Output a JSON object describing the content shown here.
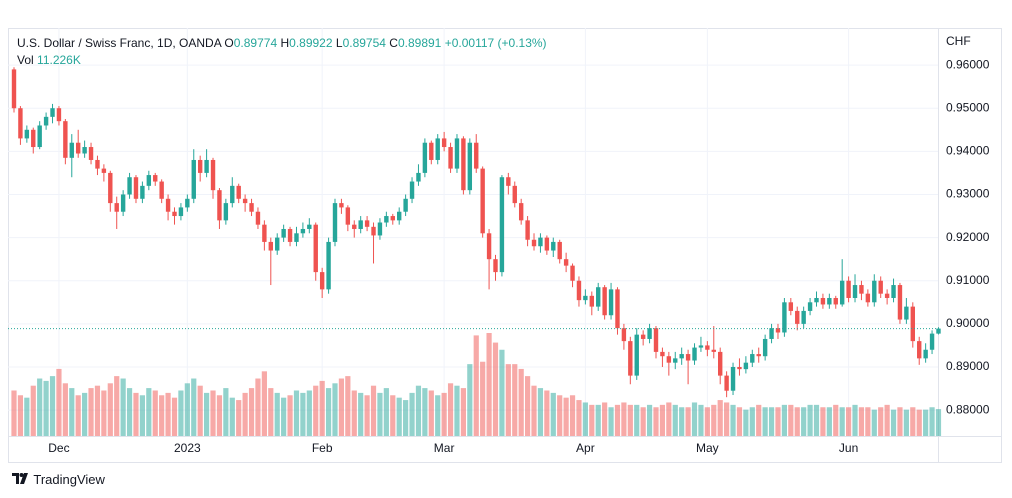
{
  "chart_data": {
    "type": "candlestick",
    "title": "U.S. Dollar / Swiss Franc, 1D, OANDA",
    "ohlc_labels": [
      "O",
      "H",
      "L",
      "C"
    ],
    "change_label": "+0.00117 (+0.13%)",
    "volume_label": "Vol",
    "volume_value_label": "11.226K",
    "y_axis_label": "CHF",
    "up_color": "#26a69a",
    "down_color": "#ef5350",
    "grid": true,
    "ylim": [
      0.874,
      0.9686
    ],
    "yticks": [
      {
        "value": 0.88,
        "label": "0.88000"
      },
      {
        "value": 0.89,
        "label": "0.89000"
      },
      {
        "value": 0.9,
        "label": "0.90000"
      },
      {
        "value": 0.91,
        "label": "0.91000"
      },
      {
        "value": 0.92,
        "label": "0.92000"
      },
      {
        "value": 0.93,
        "label": "0.93000"
      },
      {
        "value": 0.94,
        "label": "0.94000"
      },
      {
        "value": 0.95,
        "label": "0.95000"
      },
      {
        "value": 0.96,
        "label": "0.96000"
      }
    ],
    "categories": [
      null,
      null,
      null,
      null,
      null,
      null,
      null,
      "Dec",
      null,
      null,
      null,
      null,
      null,
      null,
      null,
      null,
      null,
      null,
      null,
      null,
      null,
      null,
      null,
      null,
      null,
      null,
      null,
      "2023",
      null,
      null,
      null,
      null,
      null,
      null,
      null,
      null,
      null,
      null,
      null,
      null,
      null,
      null,
      null,
      null,
      null,
      null,
      null,
      null,
      "Feb",
      null,
      null,
      null,
      null,
      null,
      null,
      null,
      null,
      null,
      null,
      null,
      null,
      null,
      null,
      null,
      null,
      null,
      null,
      "Mar",
      null,
      null,
      null,
      null,
      null,
      null,
      null,
      null,
      null,
      null,
      null,
      null,
      null,
      null,
      null,
      null,
      null,
      null,
      null,
      null,
      null,
      "Apr",
      null,
      null,
      null,
      null,
      null,
      null,
      null,
      null,
      null,
      null,
      null,
      null,
      null,
      null,
      null,
      null,
      null,
      null,
      "May",
      null,
      null,
      null,
      null,
      null,
      null,
      null,
      null,
      null,
      null,
      null,
      null,
      null,
      null,
      null,
      null,
      null,
      null,
      null,
      null,
      null,
      "Jun",
      null,
      null,
      null,
      null,
      null,
      null,
      null,
      null,
      null,
      null,
      null,
      null,
      null,
      null
    ],
    "open": [
      0.959,
      0.95,
      0.943,
      0.945,
      0.941,
      0.946,
      0.948,
      0.95,
      0.947,
      0.9385,
      0.942,
      0.9395,
      0.941,
      0.938,
      0.936,
      0.935,
      0.928,
      0.926,
      0.93,
      0.934,
      0.929,
      0.932,
      0.9345,
      0.933,
      0.929,
      0.926,
      0.925,
      0.927,
      0.929,
      0.938,
      0.935,
      0.938,
      0.931,
      0.924,
      0.928,
      0.932,
      0.929,
      0.928,
      0.926,
      0.923,
      0.919,
      0.917,
      0.92,
      0.922,
      0.919,
      0.921,
      0.922,
      0.923,
      0.912,
      0.908,
      0.919,
      0.928,
      0.927,
      0.923,
      0.922,
      0.924,
      0.9225,
      0.9205,
      0.9235,
      0.925,
      0.924,
      0.926,
      0.929,
      0.933,
      0.935,
      0.942,
      0.938,
      0.943,
      0.941,
      0.936,
      0.943,
      0.931,
      0.942,
      0.936,
      0.921,
      0.915,
      0.912,
      0.934,
      0.932,
      0.928,
      0.924,
      0.9195,
      0.918,
      0.92,
      0.917,
      0.919,
      0.915,
      0.9135,
      0.91,
      0.9055,
      0.9065,
      0.904,
      0.9085,
      0.902,
      0.908,
      0.899,
      0.896,
      0.888,
      0.8975,
      0.8965,
      0.899,
      0.8935,
      0.8925,
      0.891,
      0.892,
      0.893,
      0.8915,
      0.8945,
      0.895,
      0.894,
      0.8935,
      0.888,
      0.8845,
      0.89,
      0.8895,
      0.891,
      0.893,
      0.8925,
      0.8965,
      0.899,
      0.898,
      0.905,
      0.903,
      0.9,
      0.903,
      0.905,
      0.906,
      0.9045,
      0.906,
      0.9045,
      0.91,
      0.906,
      0.909,
      0.907,
      0.905,
      0.91,
      0.907,
      0.906,
      0.909,
      0.901,
      0.904,
      0.896,
      0.892,
      0.894,
      0.89774
    ],
    "high": [
      0.9595,
      0.9505,
      0.946,
      0.9455,
      0.947,
      0.949,
      0.951,
      0.9505,
      0.9475,
      0.944,
      0.945,
      0.9425,
      0.942,
      0.939,
      0.937,
      0.9355,
      0.9295,
      0.931,
      0.935,
      0.9345,
      0.933,
      0.9355,
      0.935,
      0.9335,
      0.93,
      0.927,
      0.928,
      0.93,
      0.9405,
      0.939,
      0.9405,
      0.9385,
      0.9315,
      0.929,
      0.934,
      0.9325,
      0.93,
      0.929,
      0.927,
      0.924,
      0.92,
      0.921,
      0.923,
      0.9225,
      0.9225,
      0.9235,
      0.9245,
      0.9235,
      0.913,
      0.92,
      0.929,
      0.929,
      0.9275,
      0.924,
      0.925,
      0.925,
      0.9235,
      0.9245,
      0.926,
      0.9255,
      0.927,
      0.93,
      0.934,
      0.937,
      0.943,
      0.9425,
      0.944,
      0.9445,
      0.942,
      0.944,
      0.9435,
      0.943,
      0.944,
      0.9365,
      0.922,
      0.916,
      0.9345,
      0.935,
      0.933,
      0.929,
      0.925,
      0.921,
      0.921,
      0.9205,
      0.92,
      0.9195,
      0.9165,
      0.914,
      0.911,
      0.908,
      0.9075,
      0.9095,
      0.909,
      0.9095,
      0.9085,
      0.9,
      0.897,
      0.899,
      0.8985,
      0.9,
      0.8995,
      0.8945,
      0.8935,
      0.8935,
      0.8945,
      0.894,
      0.8955,
      0.897,
      0.896,
      0.8995,
      0.8945,
      0.889,
      0.891,
      0.892,
      0.8925,
      0.894,
      0.8945,
      0.8975,
      0.9,
      0.9,
      0.906,
      0.906,
      0.904,
      0.904,
      0.906,
      0.9075,
      0.907,
      0.907,
      0.9065,
      0.915,
      0.911,
      0.9115,
      0.91,
      0.908,
      0.9115,
      0.911,
      0.908,
      0.9105,
      0.9095,
      0.906,
      0.905,
      0.897,
      0.8955,
      0.8985,
      0.89922
    ],
    "low": [
      0.949,
      0.9415,
      0.942,
      0.9395,
      0.9405,
      0.945,
      0.9465,
      0.946,
      0.937,
      0.934,
      0.9385,
      0.9385,
      0.937,
      0.9345,
      0.933,
      0.926,
      0.922,
      0.925,
      0.929,
      0.928,
      0.928,
      0.931,
      0.932,
      0.928,
      0.924,
      0.923,
      0.924,
      0.926,
      0.928,
      0.933,
      0.934,
      0.929,
      0.922,
      0.923,
      0.927,
      0.928,
      0.926,
      0.925,
      0.922,
      0.917,
      0.909,
      0.916,
      0.919,
      0.918,
      0.918,
      0.92,
      0.921,
      0.91,
      0.906,
      0.907,
      0.918,
      0.9255,
      0.9215,
      0.92,
      0.921,
      0.9215,
      0.914,
      0.9195,
      0.9225,
      0.923,
      0.923,
      0.925,
      0.928,
      0.932,
      0.934,
      0.937,
      0.937,
      0.94,
      0.935,
      0.935,
      0.93,
      0.93,
      0.935,
      0.92,
      0.908,
      0.91,
      0.911,
      0.93,
      0.927,
      0.923,
      0.918,
      0.917,
      0.9165,
      0.916,
      0.9155,
      0.914,
      0.912,
      0.9085,
      0.904,
      0.9045,
      0.902,
      0.903,
      0.901,
      0.901,
      0.8975,
      0.894,
      0.886,
      0.887,
      0.895,
      0.8955,
      0.892,
      0.89,
      0.888,
      0.8895,
      0.8905,
      0.886,
      0.8905,
      0.8935,
      0.8925,
      0.892,
      0.886,
      0.883,
      0.8835,
      0.888,
      0.8885,
      0.89,
      0.891,
      0.8915,
      0.8955,
      0.8965,
      0.897,
      0.902,
      0.8985,
      0.899,
      0.902,
      0.904,
      0.9035,
      0.9035,
      0.9035,
      0.904,
      0.905,
      0.905,
      0.9055,
      0.904,
      0.904,
      0.906,
      0.9045,
      0.905,
      0.9,
      0.9,
      0.8945,
      0.8905,
      0.891,
      0.893,
      0.89754
    ],
    "close": [
      0.95,
      0.943,
      0.945,
      0.941,
      0.946,
      0.948,
      0.95,
      0.947,
      0.9385,
      0.942,
      0.9395,
      0.941,
      0.938,
      0.936,
      0.935,
      0.928,
      0.926,
      0.93,
      0.934,
      0.929,
      0.932,
      0.9345,
      0.933,
      0.929,
      0.926,
      0.925,
      0.927,
      0.929,
      0.938,
      0.935,
      0.938,
      0.931,
      0.924,
      0.928,
      0.932,
      0.929,
      0.928,
      0.926,
      0.923,
      0.919,
      0.917,
      0.92,
      0.922,
      0.919,
      0.921,
      0.922,
      0.923,
      0.912,
      0.908,
      0.919,
      0.928,
      0.927,
      0.923,
      0.922,
      0.924,
      0.9225,
      0.9205,
      0.9235,
      0.925,
      0.924,
      0.926,
      0.929,
      0.933,
      0.935,
      0.942,
      0.938,
      0.943,
      0.941,
      0.936,
      0.943,
      0.931,
      0.942,
      0.936,
      0.921,
      0.915,
      0.912,
      0.934,
      0.932,
      0.928,
      0.924,
      0.9195,
      0.918,
      0.92,
      0.917,
      0.919,
      0.915,
      0.9135,
      0.91,
      0.9055,
      0.9065,
      0.904,
      0.9085,
      0.902,
      0.908,
      0.899,
      0.896,
      0.888,
      0.8975,
      0.8965,
      0.899,
      0.8935,
      0.8925,
      0.891,
      0.892,
      0.893,
      0.8915,
      0.8945,
      0.895,
      0.894,
      0.8935,
      0.888,
      0.8845,
      0.89,
      0.8895,
      0.891,
      0.893,
      0.8925,
      0.8965,
      0.899,
      0.898,
      0.905,
      0.903,
      0.9,
      0.903,
      0.905,
      0.906,
      0.9045,
      0.906,
      0.9045,
      0.91,
      0.906,
      0.909,
      0.907,
      0.905,
      0.91,
      0.907,
      0.906,
      0.909,
      0.901,
      0.904,
      0.896,
      0.892,
      0.894,
      0.89774,
      0.89891
    ],
    "volume": [
      19,
      17,
      16,
      21,
      24,
      23,
      25,
      28,
      22,
      20,
      17,
      18,
      20,
      21,
      19,
      22,
      25,
      24,
      20,
      18,
      17,
      20,
      19,
      17,
      18,
      16,
      19,
      22,
      24,
      21,
      18,
      19,
      17,
      20,
      16,
      15,
      18,
      20,
      24,
      27,
      20,
      18,
      16,
      17,
      19,
      18,
      19,
      21,
      23,
      20,
      22,
      24,
      25,
      19,
      18,
      17,
      21,
      18,
      20,
      17,
      16,
      15,
      18,
      21,
      20,
      19,
      17,
      18,
      22,
      21,
      20,
      30,
      42,
      31,
      43,
      39,
      36,
      30,
      30,
      28,
      25,
      21,
      20,
      19,
      18,
      17,
      16,
      17,
      15,
      14,
      13,
      13,
      14,
      12,
      13,
      14,
      13,
      13,
      12,
      13,
      12,
      13,
      14,
      13,
      12,
      12,
      14,
      13,
      12,
      13,
      15,
      14,
      13,
      12,
      11,
      12,
      13,
      12,
      12,
      12,
      13,
      13,
      12,
      12,
      13,
      13,
      12,
      12,
      13,
      12,
      12,
      13,
      12,
      12,
      11,
      12,
      13,
      11,
      12,
      11,
      12,
      11,
      11,
      12,
      11.226
    ]
  },
  "watermark": "TradingView"
}
